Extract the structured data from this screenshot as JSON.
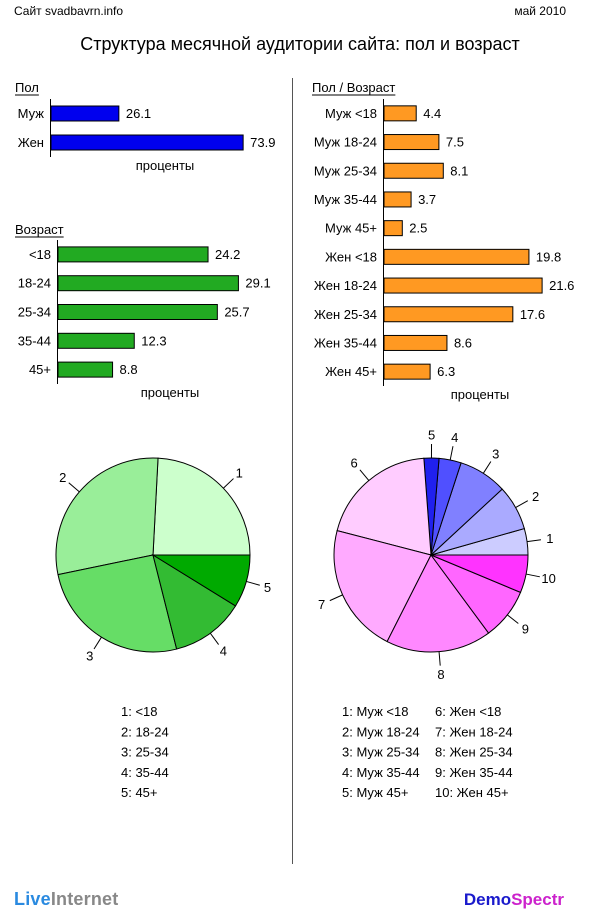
{
  "header": {
    "site": "Сайт svadbavrn.info",
    "date": "май 2010"
  },
  "title": "Структура месячной аудитории сайта: пол и возраст",
  "footer": {
    "logo_left_a": "Live",
    "logo_left_b": "Internet",
    "logo_right_a": "Demo",
    "logo_right_b": "Spectr"
  },
  "chart_data": [
    {
      "id": "gender",
      "type": "bar",
      "orientation": "horizontal",
      "title": "Пол",
      "xlabel": "проценты",
      "categories": [
        "Муж",
        "Жен"
      ],
      "values": [
        26.1,
        73.9
      ],
      "value_labels": [
        "26.1",
        "73.9"
      ],
      "color": "#0000ee"
    },
    {
      "id": "age",
      "type": "bar",
      "orientation": "horizontal",
      "title": "Возраст",
      "xlabel": "проценты",
      "categories": [
        "<18",
        "18-24",
        "25-34",
        "35-44",
        "45+"
      ],
      "values": [
        24.2,
        29.1,
        25.7,
        12.3,
        8.8
      ],
      "value_labels": [
        "24.2",
        "29.1",
        "25.7",
        "12.3",
        "8.8"
      ],
      "color": "#22aa22"
    },
    {
      "id": "gender_age",
      "type": "bar",
      "orientation": "horizontal",
      "title": "Пол / Возраст",
      "xlabel": "проценты",
      "categories": [
        "Муж <18",
        "Муж 18-24",
        "Муж 25-34",
        "Муж 35-44",
        "Муж 45+",
        "Жен <18",
        "Жен 18-24",
        "Жен 25-34",
        "Жен 35-44",
        "Жен 45+"
      ],
      "values": [
        4.4,
        7.5,
        8.1,
        3.7,
        2.5,
        19.8,
        21.6,
        17.6,
        8.6,
        6.3
      ],
      "value_labels": [
        "4.4",
        "7.5",
        "8.1",
        "3.7",
        "2.5",
        "19.8",
        "21.6",
        "17.6",
        "8.6",
        "6.3"
      ],
      "color": "#ff9922"
    },
    {
      "id": "age_pie",
      "type": "pie",
      "slice_labels": [
        "1",
        "2",
        "3",
        "4",
        "5"
      ],
      "values": [
        24.2,
        29.1,
        25.7,
        12.3,
        8.8
      ],
      "colors": [
        "#ccffcc",
        "#99ee99",
        "#66dd66",
        "#33bb33",
        "#00aa00"
      ],
      "legend": [
        "1: <18",
        "2: 18-24",
        "3: 25-34",
        "4: 35-44",
        "5: 45+"
      ]
    },
    {
      "id": "gender_age_pie",
      "type": "pie",
      "slice_labels": [
        "1",
        "2",
        "3",
        "4",
        "5",
        "6",
        "7",
        "8",
        "9",
        "10"
      ],
      "values": [
        4.4,
        7.5,
        8.1,
        3.7,
        2.5,
        19.8,
        21.6,
        17.6,
        8.6,
        6.3
      ],
      "colors": [
        "#ccccff",
        "#aaaaff",
        "#8080ff",
        "#5050ff",
        "#2020ee",
        "#ffccff",
        "#ffaaff",
        "#ff88ff",
        "#ff66ff",
        "#ff33ff"
      ],
      "legend": [
        "1: Муж <18",
        "2: Муж 18-24",
        "3: Муж 25-34",
        "4: Муж 35-44",
        "5: Муж 45+",
        "6: Жен <18",
        "7: Жен 18-24",
        "8: Жен 25-34",
        "9: Жен 35-44",
        "10: Жен 45+"
      ]
    }
  ]
}
